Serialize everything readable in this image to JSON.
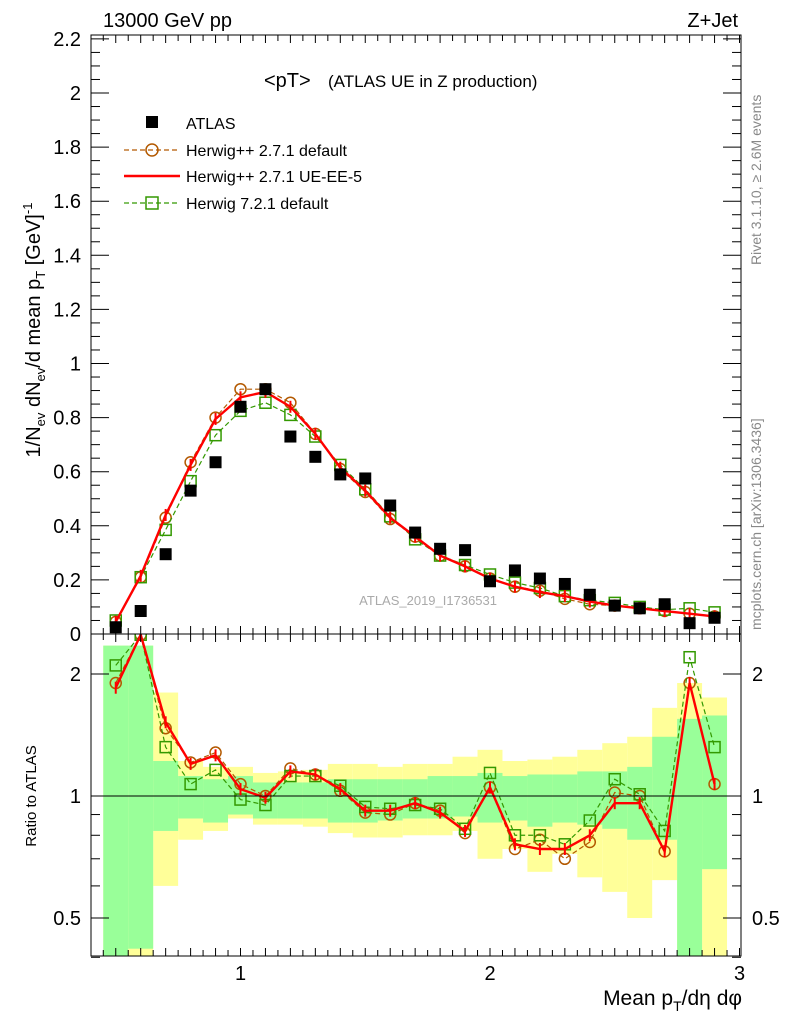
{
  "header": {
    "left": "13000 GeV pp",
    "right": "Z+Jet"
  },
  "side_labels": {
    "rivet": "Rivet 3.1.10, ≥ 2.6M events",
    "mcplots": "mcplots.cern.ch [arXiv:1306.3436]"
  },
  "watermark": "ATLAS_2019_I1736531",
  "chart_data": [
    {
      "type": "line",
      "title": "<pT>",
      "subtitle": "(ATLAS UE in Z production)",
      "ylabel": "1/N_ev dN_ev/d mean p_T [GeV]^-1",
      "ylim": [
        0,
        2.2
      ],
      "xlim": [
        0.4,
        3.0
      ],
      "yticks": [
        "0",
        "0.2",
        "0.4",
        "0.6",
        "0.8",
        "1",
        "1.2",
        "1.4",
        "1.6",
        "1.8",
        "2",
        "2.2"
      ],
      "x": [
        0.5,
        0.6,
        0.7,
        0.8,
        0.9,
        1.0,
        1.1,
        1.2,
        1.3,
        1.4,
        1.5,
        1.6,
        1.7,
        1.8,
        1.9,
        2.0,
        2.1,
        2.2,
        2.3,
        2.4,
        2.5,
        2.6,
        2.7,
        2.8,
        2.9
      ],
      "legend": [
        "ATLAS",
        "Herwig++ 2.7.1 default",
        "Herwig++ 2.7.1 UE-EE-5",
        "Herwig 7.2.1 default"
      ],
      "series": [
        {
          "name": "ATLAS",
          "color": "#000000",
          "marker": "square",
          "values": [
            0.025,
            0.085,
            0.295,
            0.53,
            0.635,
            0.84,
            0.905,
            0.73,
            0.655,
            0.59,
            0.575,
            0.475,
            0.375,
            0.315,
            0.31,
            0.195,
            0.235,
            0.205,
            0.185,
            0.145,
            0.105,
            0.095,
            0.11,
            0.04,
            0.06
          ]
        },
        {
          "name": "Herwig++ 2.7.1 default",
          "color": "#b35900",
          "marker": "circle",
          "values": [
            0.045,
            0.21,
            0.43,
            0.635,
            0.8,
            0.905,
            0.905,
            0.855,
            0.74,
            0.61,
            0.525,
            0.425,
            0.36,
            0.29,
            0.25,
            0.205,
            0.175,
            0.16,
            0.13,
            0.11,
            0.105,
            0.095,
            0.085,
            0.075,
            0.065
          ]
        },
        {
          "name": "Herwig++ 2.7.1 UE-EE-5",
          "color": "#ff0000",
          "marker": "none",
          "values": [
            0.045,
            0.215,
            0.44,
            0.625,
            0.795,
            0.875,
            0.895,
            0.84,
            0.74,
            0.615,
            0.53,
            0.43,
            0.36,
            0.29,
            0.25,
            0.205,
            0.175,
            0.155,
            0.14,
            0.12,
            0.105,
            0.095,
            0.085,
            0.075,
            0.065
          ]
        },
        {
          "name": "Herwig 7.2.1 default",
          "color": "#339900",
          "marker": "open-square",
          "values": [
            0.05,
            0.21,
            0.385,
            0.565,
            0.735,
            0.825,
            0.855,
            0.81,
            0.73,
            0.625,
            0.535,
            0.435,
            0.35,
            0.29,
            0.255,
            0.22,
            0.19,
            0.17,
            0.14,
            0.125,
            0.115,
            0.1,
            0.09,
            0.095,
            0.08
          ]
        }
      ]
    },
    {
      "type": "line",
      "ylabel": "Ratio to ATLAS",
      "xlabel": "Mean p_T/dη dφ",
      "ylim": [
        0.35,
        2.35
      ],
      "yscale": "log",
      "xlim": [
        0.4,
        3.0
      ],
      "yticks": [
        "0.5",
        "1",
        "2"
      ],
      "xticks": [
        "1",
        "2",
        "3"
      ],
      "x": [
        0.5,
        0.6,
        0.7,
        0.8,
        0.9,
        1.0,
        1.1,
        1.2,
        1.3,
        1.4,
        1.5,
        1.6,
        1.7,
        1.8,
        1.9,
        2.0,
        2.1,
        2.2,
        2.3,
        2.4,
        2.5,
        2.6,
        2.7,
        2.8,
        2.9
      ],
      "bands": {
        "yellow_lo": [
          0.35,
          0.35,
          0.6,
          0.78,
          0.82,
          0.88,
          0.85,
          0.85,
          0.84,
          0.81,
          0.79,
          0.79,
          0.8,
          0.8,
          0.82,
          0.7,
          0.74,
          0.65,
          0.72,
          0.63,
          0.58,
          0.5,
          0.62,
          0.35,
          0.35
        ],
        "yellow_hi": [
          2.35,
          2.35,
          1.8,
          1.22,
          1.18,
          1.18,
          1.14,
          1.15,
          1.16,
          1.2,
          1.2,
          1.18,
          1.2,
          1.2,
          1.25,
          1.3,
          1.22,
          1.23,
          1.25,
          1.3,
          1.35,
          1.4,
          1.65,
          1.9,
          1.75
        ],
        "green_lo": [
          0.35,
          0.42,
          0.82,
          0.88,
          0.86,
          0.9,
          0.88,
          0.88,
          0.88,
          0.86,
          0.86,
          0.87,
          0.88,
          0.88,
          0.89,
          0.86,
          0.87,
          0.84,
          0.86,
          0.85,
          0.83,
          0.78,
          0.78,
          0.39,
          0.66
        ],
        "green_hi": [
          2.35,
          2.35,
          1.22,
          1.12,
          1.1,
          1.12,
          1.08,
          1.08,
          1.08,
          1.1,
          1.1,
          1.1,
          1.1,
          1.12,
          1.12,
          1.14,
          1.12,
          1.13,
          1.13,
          1.15,
          1.15,
          1.18,
          1.4,
          1.55,
          1.58
        ]
      },
      "series": [
        {
          "name": "Herwig++ 2.7.1 default",
          "color": "#b35900",
          "marker": "circle",
          "values": [
            1.9,
            2.6,
            1.47,
            1.21,
            1.28,
            1.07,
            1.0,
            1.17,
            1.13,
            1.03,
            0.91,
            0.9,
            0.96,
            0.92,
            0.81,
            1.05,
            0.74,
            0.78,
            0.7,
            0.77,
            1.02,
            1.0,
            0.73,
            1.9,
            1.07
          ]
        },
        {
          "name": "Herwig++ 2.7.1 UE-EE-5",
          "color": "#ff0000",
          "marker": "none",
          "values": [
            1.85,
            2.6,
            1.52,
            1.2,
            1.26,
            1.04,
            0.99,
            1.15,
            1.13,
            1.04,
            0.92,
            0.92,
            0.96,
            0.91,
            0.82,
            1.05,
            0.76,
            0.74,
            0.74,
            0.8,
            0.96,
            0.96,
            0.73,
            1.9,
            1.07
          ]
        },
        {
          "name": "Herwig 7.2.1 default",
          "color": "#339900",
          "marker": "open-square",
          "values": [
            2.1,
            2.6,
            1.32,
            1.07,
            1.16,
            0.98,
            0.95,
            1.12,
            1.12,
            1.06,
            0.94,
            0.93,
            0.95,
            0.93,
            0.83,
            1.14,
            0.8,
            0.8,
            0.76,
            0.87,
            1.1,
            1.01,
            0.82,
            2.2,
            1.32
          ]
        }
      ]
    }
  ]
}
